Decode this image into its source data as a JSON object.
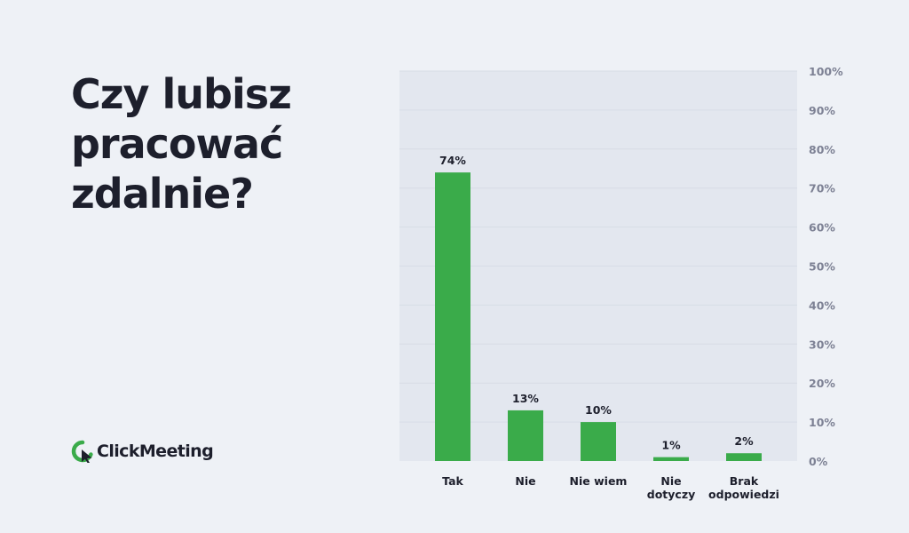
{
  "title_lines": [
    "Czy lubisz",
    "pracować",
    "zdalnie?"
  ],
  "brand": {
    "name": "ClickMeeting"
  },
  "colors": {
    "background": "#eef1f6",
    "plot_background": "#e3e7ef",
    "bar": "#3aab4a",
    "grid": "#d7dce6",
    "text": "#1d1f2c",
    "tick_text": "#7d8194"
  },
  "chart_data": {
    "type": "bar",
    "title": "Czy lubisz pracować zdalnie?",
    "categories": [
      [
        "Tak"
      ],
      [
        "Nie"
      ],
      [
        "Nie wiem"
      ],
      [
        "Nie",
        "dotyczy"
      ],
      [
        "Brak",
        "odpowiedzi"
      ]
    ],
    "values": [
      74,
      13,
      10,
      1,
      2
    ],
    "data_labels": [
      "74%",
      "13%",
      "10%",
      "1%",
      "2%"
    ],
    "ylim": [
      0,
      100
    ],
    "yticks": [
      0,
      10,
      20,
      30,
      40,
      50,
      60,
      70,
      80,
      90,
      100
    ],
    "ytick_labels": [
      "0%",
      "10%",
      "20%",
      "30%",
      "40%",
      "50%",
      "60%",
      "70%",
      "80%",
      "90%",
      "100%"
    ],
    "y_axis_position": "right",
    "grid": true,
    "legend": false
  }
}
